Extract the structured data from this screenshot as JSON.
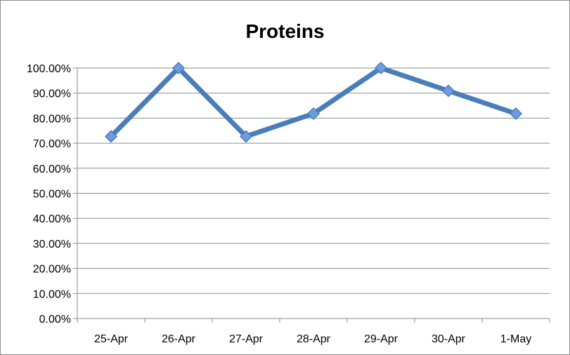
{
  "chart_data": {
    "type": "line",
    "title": "Proteins",
    "xlabel": "",
    "ylabel": "",
    "categories": [
      "25-Apr",
      "26-Apr",
      "27-Apr",
      "28-Apr",
      "29-Apr",
      "30-Apr",
      "1-May"
    ],
    "series": [
      {
        "values": [
          0.727,
          1.0,
          0.727,
          0.818,
          1.0,
          0.909,
          0.818
        ],
        "color": "#4a7ebb",
        "marker": "diamond",
        "marker_color": "#6f9be0"
      }
    ],
    "y_ticks": [
      0,
      0.1,
      0.2,
      0.3,
      0.4,
      0.5,
      0.6,
      0.7,
      0.8,
      0.9,
      1.0
    ],
    "y_tick_labels": [
      "0.00%",
      "10.00%",
      "20.00%",
      "30.00%",
      "40.00%",
      "50.00%",
      "60.00%",
      "70.00%",
      "80.00%",
      "90.00%",
      "100.00%"
    ],
    "ylim": [
      0,
      1.0
    ],
    "grid": true,
    "legend": "none",
    "gridline_color": "#8c8c8c",
    "axis_color": "#8c8c8c"
  }
}
